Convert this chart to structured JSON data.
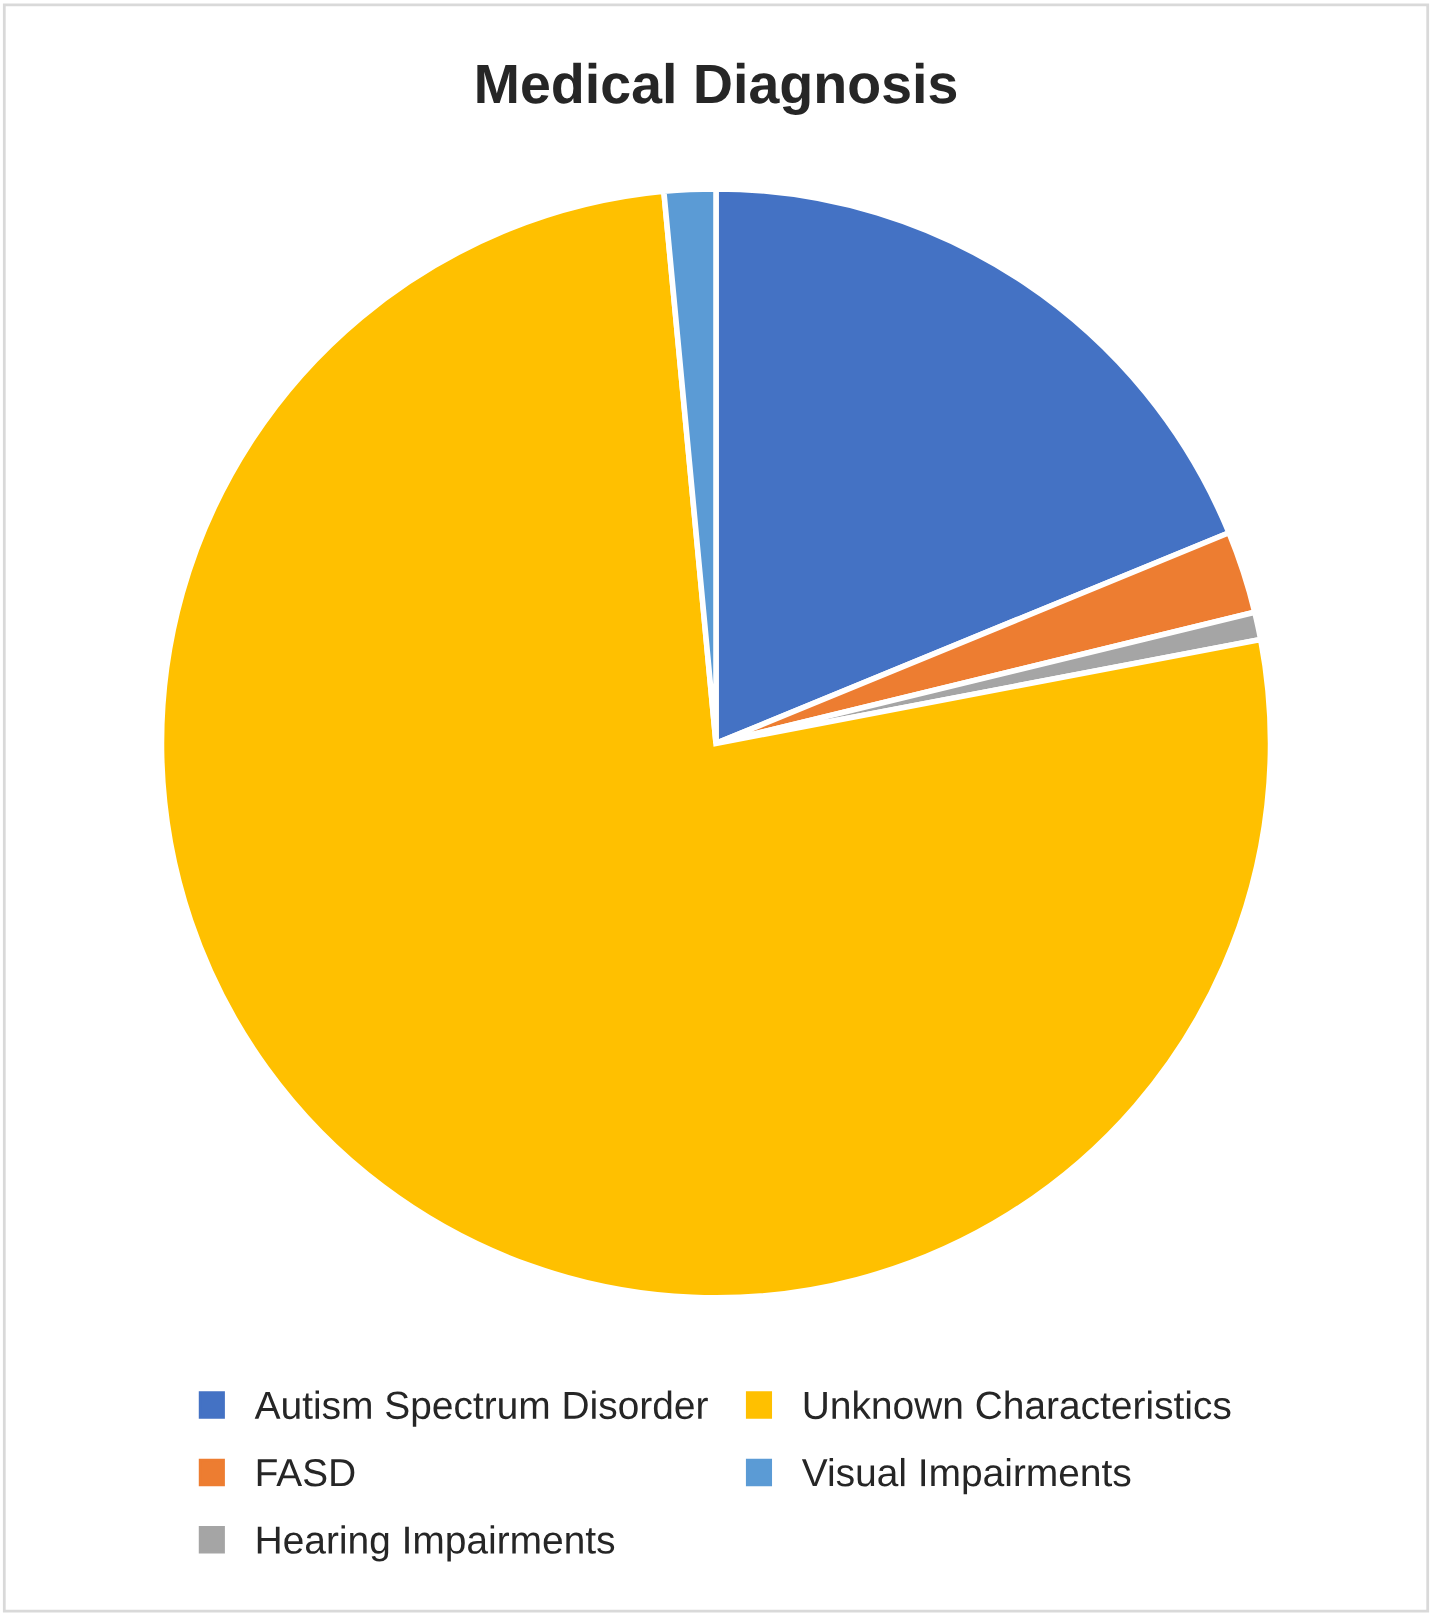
{
  "chart_data": {
    "type": "pie",
    "title": "Medical Diagnosis",
    "categories": [
      "Autism Spectrum Disorder",
      "FASD",
      "Hearing Impairments",
      "Unknown Characteristics",
      "Visual Impairments"
    ],
    "values": [
      18.8,
      2.4,
      0.8,
      76.5,
      1.5
    ],
    "colors": [
      "#4472c4",
      "#ed7d31",
      "#a5a5a5",
      "#ffc000",
      "#5b9bd5"
    ],
    "legend": "bottom"
  }
}
